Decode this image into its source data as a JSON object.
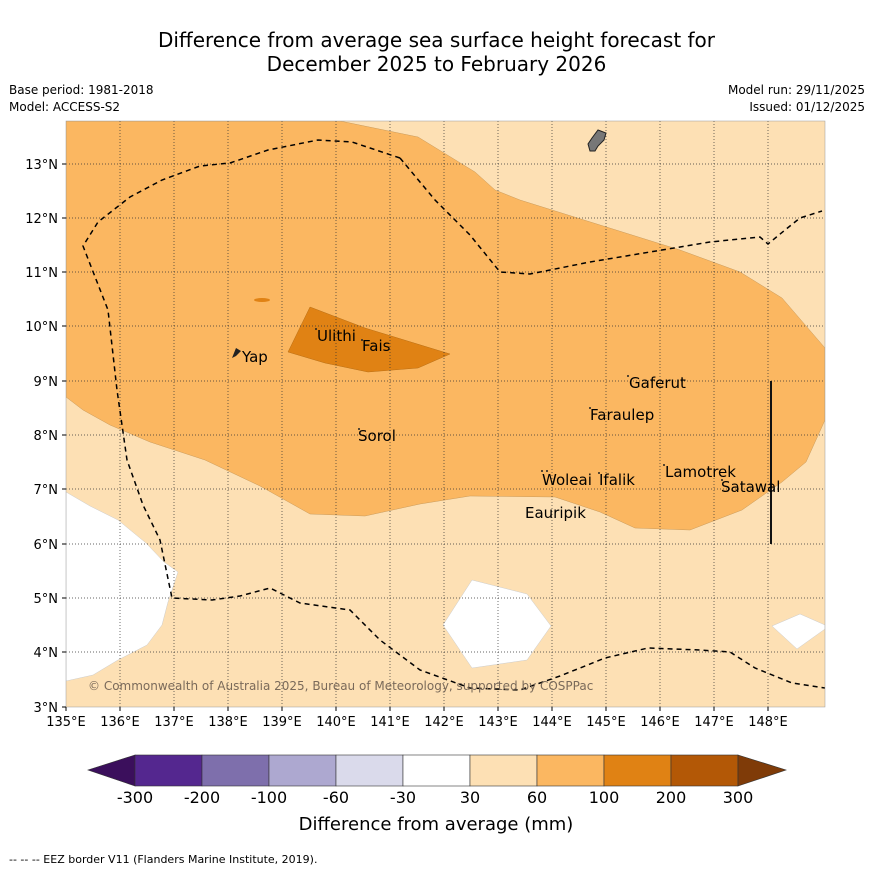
{
  "header": {
    "title_line1": "Difference from average sea surface height forecast for",
    "title_line2": "December 2025 to February 2026",
    "base_period": "Base period: 1981-2018",
    "model": "Model: ACCESS-S2",
    "model_run": "Model run: 29/11/2025",
    "issued": "Issued: 01/12/2025"
  },
  "map": {
    "lon_labels": [
      "135°E",
      "136°E",
      "137°E",
      "138°E",
      "139°E",
      "140°E",
      "141°E",
      "142°E",
      "143°E",
      "144°E",
      "145°E",
      "146°E",
      "147°E",
      "148°E"
    ],
    "lat_labels": [
      "13°N",
      "12°N",
      "11°N",
      "10°N",
      "9°N",
      "8°N",
      "7°N",
      "6°N",
      "5°N",
      "4°N",
      "3°N"
    ],
    "places": {
      "yap": "Yap",
      "ulithi": "Ulithi",
      "fais": "Fais",
      "sorol": "Sorol",
      "gaferut": "Gaferut",
      "faraulep": "Faraulep",
      "lamotrek": "Lamotrek",
      "satawal": "Satawal",
      "woleai": "Woleai",
      "ifalik": "Ifalik",
      "eauripik": "Eauripik"
    },
    "copyright": "© Commonwealth of Australia 2025, Bureau of Meteorology, supported by COSPPac"
  },
  "colorbar": {
    "labels": [
      "-300",
      "-200",
      "-100",
      "-60",
      "-30",
      "30",
      "60",
      "100",
      "200",
      "300"
    ],
    "title": "Difference from average (mm)",
    "colors": [
      "#3b0f5c",
      "#54278f",
      "#7e6fac",
      "#ada8d0",
      "#dadaeb",
      "#ffffff",
      "#fde0b4",
      "#fbb761",
      "#e08214",
      "#b35806",
      "#7f3b08"
    ]
  },
  "footer": "--  --  -- EEZ border V11 (Flanders Marine Institute, 2019)."
}
